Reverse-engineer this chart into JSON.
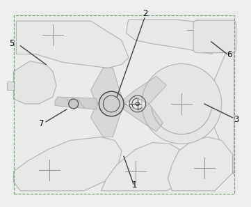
{
  "bg_color": "#f0f0f0",
  "line_color": "#b0b0b0",
  "dark_line": "#404040",
  "purple_color": "#b070b0",
  "green_color": "#70a070",
  "fig_width": 3.61,
  "fig_height": 2.97,
  "dpi": 100
}
